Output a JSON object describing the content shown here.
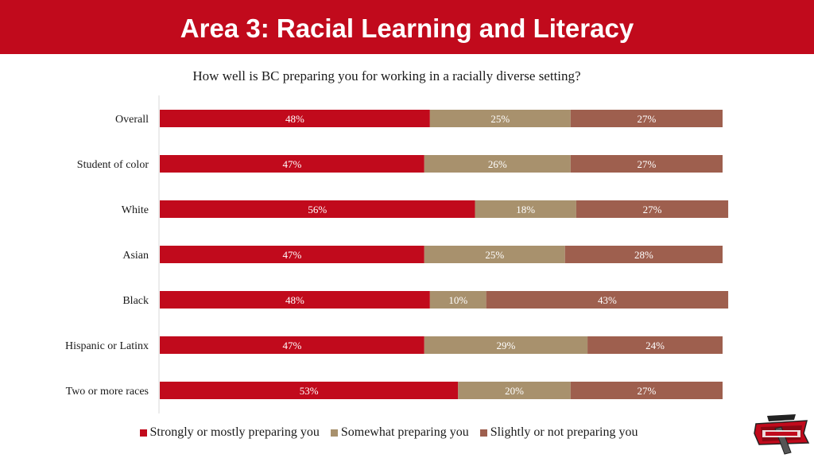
{
  "header": {
    "title": "Area 3: Racial Learning and Literacy"
  },
  "chart_data": {
    "type": "bar",
    "orientation": "horizontal",
    "stacked": true,
    "title": "How well is BC preparing you for working in a racially diverse setting?",
    "xlabel": "",
    "ylabel": "",
    "xlim": [
      0,
      100
    ],
    "categories": [
      "Overall",
      "Student of color",
      "White",
      "Asian",
      "Black",
      "Hispanic or Latinx",
      "Two or more races"
    ],
    "series": [
      {
        "name": "Strongly or mostly preparing you",
        "color": "#c10a1c",
        "values": [
          48,
          47,
          56,
          47,
          48,
          47,
          53
        ]
      },
      {
        "name": "Somewhat preparing you",
        "color": "#a8916d",
        "values": [
          25,
          26,
          18,
          25,
          10,
          29,
          20
        ]
      },
      {
        "name": "Slightly or not preparing you",
        "color": "#9e5f4e",
        "values": [
          27,
          27,
          27,
          28,
          43,
          24,
          27
        ]
      }
    ],
    "data_label_format": "{v}%",
    "legend_position": "bottom",
    "grid": false
  },
  "logo": {
    "icon": "bakersfield-college-renegades-logo"
  }
}
